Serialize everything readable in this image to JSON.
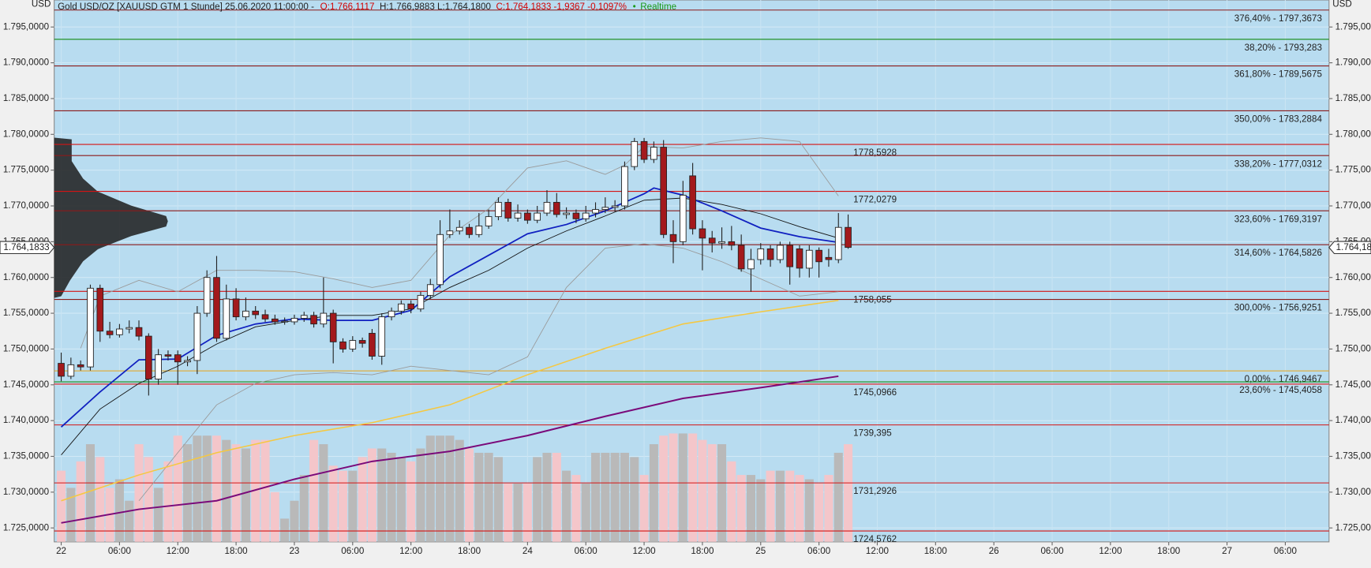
{
  "header": {
    "instrument": "Gold USD/OZ [XAUUSD GTM 1 Stunde] 25.06.2020 11:00:00 -",
    "open": "O:1.766,1117",
    "high_low": "H:1.766,9883 L:1.764,1800",
    "close_change": "C:1.764,1833 -1,9367 -0,1097%",
    "status": "Realtime"
  },
  "chart_data": {
    "type": "candlestick",
    "y_unit": "USD",
    "ylim": [
      1.723052,
      1.798774
    ],
    "yticks": [
      {
        "value": 1.725,
        "label": "1.725,0000"
      },
      {
        "value": 1.73,
        "label": "1.730,0000"
      },
      {
        "value": 1.735,
        "label": "1.735,0000"
      },
      {
        "value": 1.74,
        "label": "1.740,0000"
      },
      {
        "value": 1.745,
        "label": "1.745,0000"
      },
      {
        "value": 1.75,
        "label": "1.750,0000"
      },
      {
        "value": 1.755,
        "label": "1.755,0000"
      },
      {
        "value": 1.76,
        "label": "1.760,0000"
      },
      {
        "value": 1.765,
        "label": "1.765,0000"
      },
      {
        "value": 1.77,
        "label": "1.770,0000"
      },
      {
        "value": 1.775,
        "label": "1.775,0000"
      },
      {
        "value": 1.78,
        "label": "1.780,0000"
      },
      {
        "value": 1.785,
        "label": "1.785,0000"
      },
      {
        "value": 1.79,
        "label": "1.790,0000"
      },
      {
        "value": 1.795,
        "label": "1.795,0000"
      }
    ],
    "xlim": [
      -0.72,
      130.5
    ],
    "xticks": [
      {
        "value": 0,
        "label": "22"
      },
      {
        "value": 6,
        "label": "06:00"
      },
      {
        "value": 12,
        "label": "12:00"
      },
      {
        "value": 18,
        "label": "18:00"
      },
      {
        "value": 24,
        "label": "23"
      },
      {
        "value": 30,
        "label": "06:00"
      },
      {
        "value": 36,
        "label": "12:00"
      },
      {
        "value": 42,
        "label": "18:00"
      },
      {
        "value": 48,
        "label": "24"
      },
      {
        "value": 54,
        "label": "06:00"
      },
      {
        "value": 60,
        "label": "12:00"
      },
      {
        "value": 66,
        "label": "18:00"
      },
      {
        "value": 72,
        "label": "25"
      },
      {
        "value": 78,
        "label": "06:00"
      },
      {
        "value": 84,
        "label": "12:00"
      },
      {
        "value": 90,
        "label": "18:00"
      },
      {
        "value": 96,
        "label": "26"
      },
      {
        "value": 102,
        "label": "06:00"
      },
      {
        "value": 108,
        "label": "12:00"
      },
      {
        "value": 114,
        "label": "18:00"
      },
      {
        "value": 120,
        "label": "27"
      },
      {
        "value": 126,
        "label": "06:00"
      }
    ],
    "grid": true,
    "up_color": "#ffffff",
    "down_color": "#a3191c",
    "open": [
      1.748,
      1.7462,
      1.7478,
      1.7475,
      1.7585,
      1.7525,
      1.752,
      1.7528,
      1.753,
      1.7518,
      1.7458,
      1.7492,
      1.7492,
      1.7482,
      1.7484,
      1.755,
      1.76,
      1.7515,
      1.757,
      1.7545,
      1.7553,
      1.7548,
      1.7542,
      1.7538,
      1.7538,
      1.7543,
      1.7547,
      1.7535,
      1.755,
      1.751,
      1.75,
      1.7512,
      1.7522,
      1.749,
      1.7545,
      1.7553,
      1.7563,
      1.7556,
      1.7575,
      1.759,
      1.766,
      1.7665,
      1.767,
      1.766,
      1.7672,
      1.7685,
      1.7705,
      1.7683,
      1.769,
      1.768,
      1.769,
      1.7705,
      1.7688,
      1.769,
      1.7682,
      1.769,
      1.7695,
      1.7698,
      1.77,
      1.7755,
      1.779,
      1.7765,
      1.7782,
      1.766,
      1.765,
      1.7742,
      1.7668,
      1.7655,
      1.7648,
      1.765,
      1.7645,
      1.7612,
      1.7625,
      1.764,
      1.7625,
      1.7645,
      1.764,
      1.7613,
      1.7638,
      1.7628,
      1.7625,
      1.767
    ],
    "high": [
      1.7495,
      1.7488,
      1.7484,
      1.759,
      1.759,
      1.7538,
      1.7535,
      1.754,
      1.754,
      1.7522,
      1.75,
      1.7498,
      1.7498,
      1.749,
      1.756,
      1.761,
      1.763,
      1.759,
      1.7585,
      1.7572,
      1.756,
      1.7555,
      1.7548,
      1.7544,
      1.7548,
      1.7552,
      1.7552,
      1.76,
      1.7555,
      1.7515,
      1.7518,
      1.7516,
      1.7528,
      1.755,
      1.7558,
      1.7568,
      1.7568,
      1.758,
      1.7598,
      1.768,
      1.7695,
      1.768,
      1.7675,
      1.769,
      1.7695,
      1.7712,
      1.771,
      1.7702,
      1.7695,
      1.77,
      1.7722,
      1.7718,
      1.7698,
      1.7695,
      1.77,
      1.7705,
      1.7712,
      1.7708,
      1.7762,
      1.7795,
      1.7795,
      1.779,
      1.7792,
      1.768,
      1.7735,
      1.776,
      1.768,
      1.7665,
      1.767,
      1.7672,
      1.766,
      1.764,
      1.7648,
      1.7645,
      1.765,
      1.765,
      1.7645,
      1.7645,
      1.7642,
      1.764,
      1.769,
      1.7688
    ],
    "low": [
      1.7455,
      1.7458,
      1.747,
      1.747,
      1.751,
      1.7515,
      1.7516,
      1.7522,
      1.7512,
      1.7435,
      1.745,
      1.7484,
      1.745,
      1.7476,
      1.7465,
      1.7545,
      1.751,
      1.7512,
      1.754,
      1.754,
      1.7542,
      1.7538,
      1.7534,
      1.7534,
      1.7534,
      1.7538,
      1.753,
      1.753,
      1.748,
      1.7495,
      1.7496,
      1.7502,
      1.7485,
      1.7478,
      1.754,
      1.7548,
      1.755,
      1.7552,
      1.757,
      1.7585,
      1.7655,
      1.766,
      1.7655,
      1.7656,
      1.7668,
      1.768,
      1.7678,
      1.7678,
      1.7675,
      1.7676,
      1.7686,
      1.7684,
      1.7682,
      1.7676,
      1.7678,
      1.7684,
      1.769,
      1.7692,
      1.7695,
      1.775,
      1.776,
      1.776,
      1.7655,
      1.762,
      1.7645,
      1.766,
      1.761,
      1.7635,
      1.764,
      1.7638,
      1.7608,
      1.758,
      1.7618,
      1.7615,
      1.762,
      1.759,
      1.76,
      1.76,
      1.76,
      1.7615,
      1.762,
      1.764
    ],
    "close": [
      1.7462,
      1.7478,
      1.7475,
      1.7585,
      1.7525,
      1.752,
      1.7528,
      1.753,
      1.7518,
      1.7458,
      1.7492,
      1.749,
      1.7482,
      1.7484,
      1.755,
      1.76,
      1.7515,
      1.757,
      1.7545,
      1.7553,
      1.7548,
      1.7542,
      1.7538,
      1.7539,
      1.7543,
      1.7547,
      1.7535,
      1.755,
      1.751,
      1.75,
      1.7512,
      1.7508,
      1.749,
      1.7545,
      1.7553,
      1.7563,
      1.7556,
      1.7575,
      1.759,
      1.766,
      1.7665,
      1.767,
      1.766,
      1.7672,
      1.7685,
      1.7705,
      1.7683,
      1.769,
      1.768,
      1.769,
      1.7705,
      1.7688,
      1.769,
      1.7682,
      1.769,
      1.7695,
      1.7698,
      1.77,
      1.7755,
      1.779,
      1.7765,
      1.7782,
      1.766,
      1.765,
      1.7715,
      1.7668,
      1.7655,
      1.7648,
      1.765,
      1.7645,
      1.7612,
      1.7625,
      1.764,
      1.7625,
      1.7645,
      1.7615,
      1.7613,
      1.7638,
      1.7622,
      1.7625,
      1.767,
      1.7642
    ],
    "volume_colors": {
      "up": "#b9b9b9",
      "down": "#f4c6ca"
    },
    "volume": [
      1.733,
      1.7306,
      1.7343,
      1.7367,
      1.7349,
      1.7306,
      1.7318,
      1.7288,
      1.7367,
      1.7349,
      1.7306,
      1.7343,
      1.7379,
      1.7367,
      1.7379,
      1.7379,
      1.7379,
      1.7373,
      1.7367,
      1.7361,
      1.7373,
      1.7373,
      1.73,
      1.7263,
      1.7288,
      1.7324,
      1.7373,
      1.7367,
      1.7337,
      1.733,
      1.733,
      1.7349,
      1.7361,
      1.7361,
      1.7355,
      1.7349,
      1.7343,
      1.7361,
      1.7379,
      1.7379,
      1.7379,
      1.7373,
      1.7361,
      1.7355,
      1.7355,
      1.7349,
      1.7312,
      1.7312,
      1.7312,
      1.7349,
      1.7355,
      1.7355,
      1.733,
      1.7324,
      1.7312,
      1.7355,
      1.7355,
      1.7355,
      1.7355,
      1.7349,
      1.7324,
      1.7367,
      1.7379,
      1.7382,
      1.7382,
      1.7382,
      1.7373,
      1.7367,
      1.7367,
      1.7343,
      1.7324,
      1.7324,
      1.7318,
      1.733,
      1.733,
      1.733,
      1.7324,
      1.7318,
      1.7312,
      1.7324,
      1.7355,
      1.7367
    ],
    "overlays": [
      {
        "color": "#9a9a9a",
        "width": 0.8,
        "x": [
          2,
          4,
          8,
          12,
          16,
          20,
          24,
          28,
          32,
          36,
          40,
          44,
          48,
          52,
          56,
          58,
          60,
          64,
          68,
          72,
          76,
          80
        ],
        "values": [
          1.7501,
          1.7574,
          1.7596,
          1.758,
          1.761,
          1.761,
          1.7608,
          1.7598,
          1.7586,
          1.7596,
          1.7659,
          1.7696,
          1.7753,
          1.7763,
          1.7744,
          1.7757,
          1.7783,
          1.7781,
          1.779,
          1.7795,
          1.779,
          1.7714
        ]
      },
      {
        "color": "#9a9a9a",
        "width": 0.8,
        "x": [
          8,
          12,
          16,
          20,
          24,
          28,
          32,
          36,
          40,
          44,
          48,
          52,
          56,
          60,
          64,
          68,
          72,
          76,
          80
        ],
        "values": [
          1.7288,
          1.7355,
          1.7422,
          1.7452,
          1.7464,
          1.7467,
          1.7464,
          1.7476,
          1.747,
          1.7464,
          1.7489,
          1.7586,
          1.7641,
          1.7647,
          1.7641,
          1.7622,
          1.7598,
          1.7574,
          1.758
        ]
      },
      {
        "color": "#f5c842",
        "width": 1.4,
        "x": [
          0,
          8,
          16,
          24,
          32,
          40,
          48,
          56,
          64,
          72,
          80
        ],
        "values": [
          1.7288,
          1.7324,
          1.7355,
          1.7379,
          1.7397,
          1.7422,
          1.7464,
          1.7501,
          1.7535,
          1.7552,
          1.7568
        ]
      },
      {
        "color": "#7a0a7a",
        "width": 1.8,
        "x": [
          0,
          8,
          16,
          24,
          32,
          40,
          48,
          56,
          64,
          72,
          80
        ],
        "values": [
          1.7257,
          1.7276,
          1.7288,
          1.7318,
          1.7343,
          1.7357,
          1.7379,
          1.7406,
          1.7431,
          1.7446,
          1.7462
        ]
      },
      {
        "color": "#111111",
        "width": 0.8,
        "x": [
          0,
          4,
          8,
          12,
          16,
          20,
          24,
          28,
          32,
          36,
          40,
          44,
          48,
          52,
          56,
          60,
          64,
          68,
          72,
          76,
          80
        ],
        "values": [
          1.7352,
          1.7416,
          1.7452,
          1.7476,
          1.7507,
          1.7531,
          1.754,
          1.7547,
          1.7547,
          1.7556,
          1.7586,
          1.761,
          1.7641,
          1.7665,
          1.7686,
          1.7708,
          1.7711,
          1.7702,
          1.7689,
          1.7671,
          1.7655
        ]
      },
      {
        "color": "#1020c0",
        "width": 1.6,
        "x": [
          0,
          4,
          8,
          12,
          16,
          20,
          24,
          28,
          32,
          36,
          40,
          44,
          48,
          52,
          56,
          60,
          61,
          64,
          68,
          72,
          76,
          80
        ],
        "values": [
          1.7391,
          1.744,
          1.7485,
          1.7486,
          1.7519,
          1.7535,
          1.7542,
          1.754,
          1.754,
          1.7554,
          1.7601,
          1.7631,
          1.7661,
          1.7674,
          1.7693,
          1.7717,
          1.7725,
          1.7715,
          1.7693,
          1.7669,
          1.7657,
          1.7649
        ]
      }
    ],
    "levels": [
      {
        "value": 1.7973673,
        "label": "376,40% - 1797,3673",
        "color": "#8b1a1a"
      },
      {
        "value": 1.793283,
        "label": "38,20% - 1793,283",
        "color": "#138a13"
      },
      {
        "value": 1.7895675,
        "label": "361,80% - 1789,5675",
        "color": "#8b1a1a"
      },
      {
        "value": 1.7832884,
        "label": "350,00% - 1783,2884",
        "color": "#8b1a1a"
      },
      {
        "value": 1.7785928,
        "label": "1778,5928",
        "color": "#d41414"
      },
      {
        "value": 1.7770312,
        "label": "338,20% - 1777,0312",
        "color": "#8b1a1a"
      },
      {
        "value": 1.7720279,
        "label": "1772,0279",
        "color": "#d41414"
      },
      {
        "value": 1.7693197,
        "label": "323,60% - 1769,3197",
        "color": "#8b1a1a"
      },
      {
        "value": 1.7645826,
        "label": "314,60% - 1764,5826",
        "color": "#8b1a1a"
      },
      {
        "value": 1.758055,
        "label": "1758,055",
        "color": "#d41414"
      },
      {
        "value": 1.7569251,
        "label": "300,00% - 1756,9251",
        "color": "#8b1a1a"
      },
      {
        "value": 1.7469467,
        "label": "0,00% - 1746,9467",
        "color": "#e8a317"
      },
      {
        "value": 1.7454058,
        "label": "23,60% - 1745,4058",
        "color": "#138a13"
      },
      {
        "value": 1.7450966,
        "label": "1745,0966",
        "color": "#d41414"
      },
      {
        "value": 1.739395,
        "label": "1739,395",
        "color": "#d41414"
      },
      {
        "value": 1.7312926,
        "label": "1731,2926",
        "color": "#d41414"
      },
      {
        "value": 1.7245762,
        "label": "1724,5762",
        "color": "#d41414"
      }
    ],
    "last": {
      "value": 1.7641833,
      "label": "1.764,1833"
    }
  }
}
